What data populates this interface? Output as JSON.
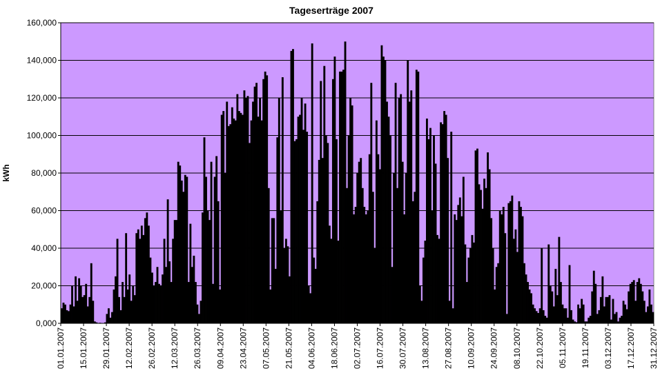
{
  "chart_data": {
    "type": "bar",
    "title": "Tageserträge 2007",
    "xlabel": "",
    "ylabel": "kWh",
    "ylim": [
      0,
      160000
    ],
    "yticks": [
      "0,000",
      "20,000",
      "40,000",
      "60,000",
      "80,000",
      "100,000",
      "120,000",
      "140,000",
      "160,000"
    ],
    "xticks": [
      "01.01.2007",
      "15.01.2007",
      "29.01.2007",
      "12.02.2007",
      "26.02.2007",
      "12.03.2007",
      "26.03.2007",
      "09.04.2007",
      "23.04.2007",
      "07.05.2007",
      "21.05.2007",
      "04.06.2007",
      "18.06.2007",
      "02.07.2007",
      "16.07.2007",
      "30.07.2007",
      "13.08.2007",
      "27.08.2007",
      "10.09.2007",
      "24.09.2007",
      "08.10.2007",
      "22.10.2007",
      "05.11.2007",
      "19.11.2007",
      "03.12.2007",
      "17.12.2007",
      "31.12.2007"
    ],
    "grid": true,
    "legend": "none",
    "colors": {
      "plot_bg": "#cc99ff",
      "bar": "#000000",
      "grid": "#000000"
    },
    "series": [
      {
        "values": [
          8000,
          11000,
          10000,
          7000,
          6500,
          10000,
          20000,
          9000,
          25000,
          12000,
          24000,
          20000,
          14000,
          15000,
          21000,
          9000,
          14000,
          32000,
          12000,
          1000,
          500,
          0,
          300,
          0,
          0,
          500,
          5000,
          8000,
          3000,
          6000,
          18000,
          25000,
          45000,
          14000,
          7000,
          22000,
          14000,
          48000,
          18000,
          26000,
          12000,
          20000,
          15000,
          48000,
          50000,
          45000,
          52000,
          47000,
          56000,
          59000,
          52000,
          35000,
          27000,
          20000,
          22000,
          30000,
          21000,
          20000,
          26000,
          45000,
          30000,
          66000,
          33000,
          22000,
          45000,
          55000,
          55000,
          86000,
          84000,
          76000,
          70000,
          79000,
          78000,
          22000,
          53000,
          30000,
          36000,
          22000,
          10000,
          5000,
          12000,
          59000,
          99000,
          78000,
          60000,
          55000,
          86000,
          21000,
          78000,
          89000,
          65000,
          18000,
          111000,
          113000,
          80000,
          118000,
          105000,
          106000,
          115000,
          109000,
          108000,
          122000,
          113000,
          112000,
          111000,
          124000,
          120000,
          121000,
          96000,
          108000,
          118000,
          126000,
          128000,
          110000,
          120000,
          108000,
          130000,
          134000,
          132000,
          72000,
          18000,
          56000,
          56000,
          29000,
          99000,
          120000,
          60000,
          131000,
          40000,
          45000,
          41000,
          25000,
          145000,
          146000,
          97000,
          98000,
          110000,
          111000,
          120000,
          103000,
          117000,
          102000,
          20000,
          16000,
          149000,
          35000,
          29000,
          65000,
          87000,
          129000,
          88000,
          137000,
          100000,
          96000,
          52000,
          45000,
          130000,
          142000,
          98000,
          44000,
          134000,
          134000,
          135000,
          150000,
          72000,
          100000,
          120000,
          116000,
          58000,
          62000,
          80000,
          86000,
          88000,
          72000,
          62000,
          58000,
          60000,
          90000,
          128000,
          70000,
          40000,
          108000,
          90000,
          82000,
          148000,
          142000,
          140000,
          118000,
          110000,
          100000,
          30000,
          80000,
          128000,
          72000,
          120000,
          122000,
          86000,
          58000,
          80000,
          140000,
          118000,
          124000,
          65000,
          70000,
          135000,
          134000,
          20000,
          12000,
          35000,
          44000,
          109000,
          98000,
          104000,
          60000,
          100000,
          85000,
          47000,
          45000,
          107000,
          106000,
          113000,
          111000,
          88000,
          12000,
          102000,
          8000,
          58000,
          55000,
          63000,
          67000,
          57000,
          78000,
          42000,
          22000,
          35000,
          40000,
          47000,
          43000,
          92000,
          93000,
          74000,
          71000,
          61000,
          77000,
          72000,
          91000,
          82000,
          56000,
          40000,
          18000,
          30000,
          32000,
          60000,
          58000,
          62000,
          48000,
          5000,
          64000,
          65000,
          68000,
          45000,
          50000,
          38000,
          65000,
          62000,
          57000,
          32000,
          26000,
          22000,
          18000,
          16000,
          10000,
          8000,
          6500,
          5500,
          8000,
          40000,
          7000,
          4000,
          3000,
          42000,
          20000,
          17000,
          9000,
          29000,
          15000,
          46000,
          22000,
          10000,
          8000,
          8000,
          3000,
          31000,
          7000,
          2000,
          1000,
          600,
          10000,
          8000,
          13000,
          10000,
          1000,
          1000,
          3000,
          4000,
          17000,
          28000,
          21000,
          5000,
          7000,
          14000,
          25000,
          9000,
          14000,
          14000,
          15000,
          2000,
          13000,
          5000,
          6000,
          1000,
          3000,
          4000,
          12000,
          10000,
          7500,
          17000,
          21000,
          22000,
          23000,
          12000,
          22000,
          24000,
          21000,
          17000,
          12000,
          6000,
          9000,
          18000,
          10000,
          6000
        ]
      }
    ]
  }
}
